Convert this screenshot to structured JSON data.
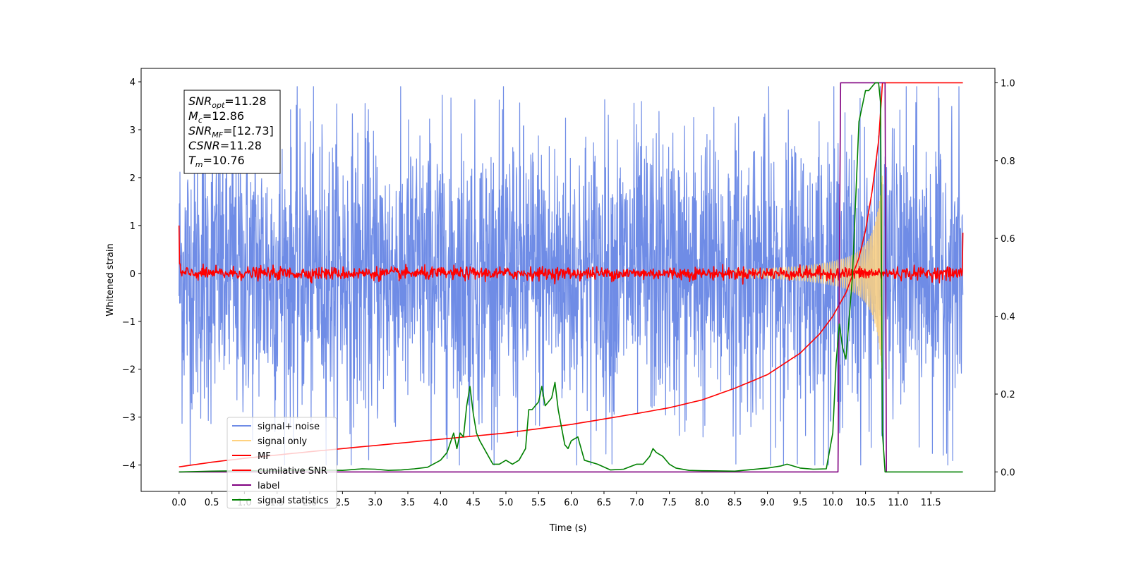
{
  "chart_data": {
    "type": "line",
    "xlabel": "Time (s)",
    "ylabel": "Whitened strain",
    "xlim": [
      -0.58,
      12.48
    ],
    "ylim_left": [
      -4.55,
      4.28
    ],
    "ylim_right": [
      -0.05,
      1.037
    ],
    "x_ticks": [
      0.0,
      0.5,
      1.0,
      1.5,
      2.0,
      2.5,
      3.0,
      3.5,
      4.0,
      4.5,
      5.0,
      5.5,
      6.0,
      6.5,
      7.0,
      7.5,
      8.0,
      8.5,
      9.0,
      9.5,
      10.0,
      10.5,
      11.0,
      11.5
    ],
    "x_tick_labels": [
      "0.0",
      "0.5",
      "1.0",
      "1.5",
      "2.0",
      "2.5",
      "3.0",
      "3.5",
      "4.0",
      "4.5",
      "5.0",
      "5.5",
      "6.0",
      "6.5",
      "7.0",
      "7.5",
      "8.0",
      "8.5",
      "9.0",
      "9.5",
      "10.0",
      "10.5",
      "11.0",
      "11.5"
    ],
    "y_ticks_left": [
      4,
      3,
      2,
      1,
      0,
      -1,
      -2,
      -3,
      -4
    ],
    "y_tick_labels_left": [
      "4",
      "3",
      "2",
      "1",
      "0",
      "−1",
      "−2",
      "−3",
      "−4"
    ],
    "y_ticks_right": [
      1.0,
      0.8,
      0.6,
      0.4,
      0.2,
      0.0
    ],
    "y_tick_labels_right": [
      "1.0",
      "0.8",
      "0.6",
      "0.4",
      "0.2",
      "0.0"
    ],
    "legend_position": "lower-left",
    "legend": [
      {
        "label": "signal+ noise",
        "color": "#6f8ce6"
      },
      {
        "label": "signal only",
        "color": "#ffd27f"
      },
      {
        "label": "MF",
        "color": "#ff0000"
      },
      {
        "label": "cumilative SNR",
        "color": "#ff0000"
      },
      {
        "label": "label",
        "color": "#800080"
      },
      {
        "label": "signal statistics",
        "color": "#008000"
      }
    ],
    "annotation": {
      "lines": [
        {
          "base": "SNR",
          "sub": "opt",
          "rest": "=11.28"
        },
        {
          "base": "M",
          "sub": "c",
          "rest": "=12.86"
        },
        {
          "base": "SNR",
          "sub": "MF",
          "rest": "=[12.73]"
        },
        {
          "base": "CSNR",
          "sub": "",
          "rest": "=11.28"
        },
        {
          "base": "T",
          "sub": "m",
          "rest": "=10.76"
        }
      ]
    },
    "series": [
      {
        "name": "signal+ noise",
        "axis": "left",
        "kind": "noise-band",
        "x_range": [
          0.0,
          11.99
        ],
        "center": 0.0,
        "typical_amplitude": 1.6,
        "max": 3.9,
        "min": -4.0,
        "color": "#6f8ce6"
      },
      {
        "name": "signal only",
        "axis": "left",
        "kind": "chirp",
        "x_range": [
          8.5,
          10.76
        ],
        "peak_amplitude": 2.2,
        "color": "#ffd27f"
      },
      {
        "name": "MF",
        "axis": "left",
        "kind": "noise-band",
        "x_range": [
          0.0,
          11.99
        ],
        "center": 0.0,
        "typical_amplitude": 0.12,
        "start_value": 1.0,
        "end_value": 0.85,
        "color": "#ff0000"
      },
      {
        "name": "cumilative SNR",
        "axis": "right",
        "x": [
          0.0,
          0.5,
          1.0,
          2.0,
          3.0,
          4.0,
          5.0,
          6.0,
          7.0,
          7.5,
          8.0,
          8.5,
          9.0,
          9.5,
          9.8,
          10.0,
          10.2,
          10.4,
          10.5,
          10.6,
          10.7,
          10.76,
          11.99
        ],
        "values": [
          0.013,
          0.025,
          0.035,
          0.052,
          0.068,
          0.084,
          0.1,
          0.122,
          0.15,
          0.165,
          0.185,
          0.215,
          0.25,
          0.305,
          0.355,
          0.4,
          0.46,
          0.55,
          0.62,
          0.72,
          0.85,
          1.0,
          1.0
        ],
        "color": "#ff0000"
      },
      {
        "name": "label",
        "axis": "right",
        "x": [
          0.0,
          10.08,
          10.12,
          10.8,
          10.82
        ],
        "values": [
          0.0,
          0.0,
          1.0,
          1.0,
          0.0
        ],
        "color": "#800080"
      },
      {
        "name": "signal statistics",
        "axis": "right",
        "x": [
          0.0,
          0.5,
          1.0,
          1.5,
          2.0,
          2.5,
          2.8,
          3.0,
          3.2,
          3.4,
          3.6,
          3.8,
          4.0,
          4.1,
          4.2,
          4.25,
          4.3,
          4.35,
          4.4,
          4.45,
          4.5,
          4.55,
          4.6,
          4.7,
          4.8,
          4.9,
          5.0,
          5.1,
          5.2,
          5.3,
          5.35,
          5.4,
          5.5,
          5.55,
          5.6,
          5.7,
          5.75,
          5.8,
          5.9,
          5.95,
          6.0,
          6.1,
          6.2,
          6.4,
          6.6,
          6.8,
          7.0,
          7.1,
          7.2,
          7.25,
          7.3,
          7.4,
          7.5,
          7.6,
          7.8,
          8.0,
          8.5,
          8.7,
          9.0,
          9.2,
          9.3,
          9.5,
          9.7,
          9.9,
          10.0,
          10.05,
          10.1,
          10.15,
          10.2,
          10.3,
          10.4,
          10.5,
          10.55,
          10.6,
          10.65,
          10.7,
          10.73,
          10.76,
          10.78,
          10.8,
          10.85,
          10.9,
          11.99
        ],
        "values": [
          0.0,
          0.002,
          0.003,
          0.003,
          0.005,
          0.004,
          0.008,
          0.007,
          0.004,
          0.005,
          0.008,
          0.012,
          0.03,
          0.05,
          0.1,
          0.06,
          0.1,
          0.09,
          0.17,
          0.22,
          0.15,
          0.1,
          0.08,
          0.05,
          0.02,
          0.02,
          0.03,
          0.02,
          0.03,
          0.06,
          0.16,
          0.16,
          0.18,
          0.22,
          0.17,
          0.19,
          0.23,
          0.16,
          0.07,
          0.06,
          0.08,
          0.09,
          0.03,
          0.02,
          0.005,
          0.007,
          0.02,
          0.02,
          0.04,
          0.06,
          0.05,
          0.04,
          0.02,
          0.01,
          0.004,
          0.003,
          0.002,
          0.005,
          0.01,
          0.015,
          0.02,
          0.01,
          0.007,
          0.008,
          0.1,
          0.28,
          0.38,
          0.32,
          0.29,
          0.5,
          0.9,
          0.98,
          0.98,
          0.99,
          1.0,
          1.0,
          0.95,
          0.1,
          0.05,
          0.0,
          0.0,
          0.0,
          0.0
        ],
        "color": "#008000"
      }
    ]
  }
}
